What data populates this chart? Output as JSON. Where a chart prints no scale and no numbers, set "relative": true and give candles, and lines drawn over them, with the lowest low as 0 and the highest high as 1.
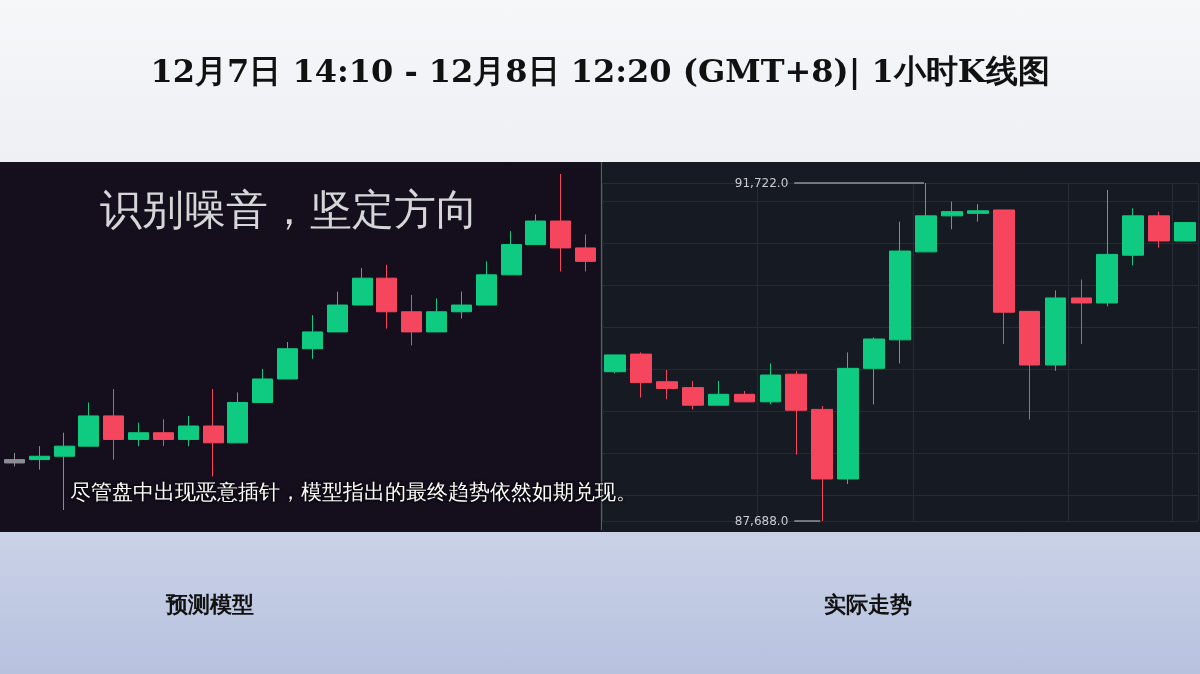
{
  "chart_data": [
    {
      "type": "candlestick",
      "title": "12月7日 14:10 - 12月8日 12:20  (GMT+8)| 1小时K线图",
      "xlabel": "预测模型",
      "relative": true,
      "tick_labels": false,
      "annotations": [
        "识别噪音，坚定方向",
        "尽管盘中出现恶意插针，模型指出的最终趋势依然如期兑现。"
      ],
      "categories": [
        null,
        null,
        null,
        null,
        null,
        null,
        null,
        null,
        null,
        null,
        null,
        null,
        null,
        null,
        null,
        null,
        null,
        null,
        null,
        null,
        null,
        null,
        null,
        null
      ],
      "ohlc": [
        [
          0.14,
          0.17,
          0.13,
          0.15
        ],
        [
          0.15,
          0.19,
          0.12,
          0.16
        ],
        [
          0.16,
          0.23,
          0,
          0.19
        ],
        [
          0.19,
          0.32,
          0.19,
          0.28
        ],
        [
          0.28,
          0.36,
          0.15,
          0.21
        ],
        [
          0.21,
          0.26,
          0.19,
          0.23
        ],
        [
          0.23,
          0.27,
          0.19,
          0.21
        ],
        [
          0.21,
          0.28,
          0.19,
          0.25
        ],
        [
          0.25,
          0.36,
          0.1,
          0.2
        ],
        [
          0.2,
          0.35,
          0.2,
          0.32
        ],
        [
          0.32,
          0.42,
          0.32,
          0.39
        ],
        [
          0.39,
          0.5,
          0.39,
          0.48
        ],
        [
          0.48,
          0.58,
          0.45,
          0.53
        ],
        [
          0.53,
          0.65,
          0.53,
          0.61
        ],
        [
          0.61,
          0.72,
          0.61,
          0.69
        ],
        [
          0.69,
          0.73,
          0.54,
          0.59
        ],
        [
          0.59,
          0.64,
          0.49,
          0.53
        ],
        [
          0.53,
          0.63,
          0.53,
          0.59
        ],
        [
          0.59,
          0.65,
          0.57,
          0.61
        ],
        [
          0.61,
          0.74,
          0.61,
          0.7
        ],
        [
          0.7,
          0.83,
          0.7,
          0.79
        ],
        [
          0.79,
          0.88,
          0.79,
          0.86
        ],
        [
          0.86,
          1,
          0.71,
          0.78
        ],
        [
          0.78,
          0.82,
          0.71,
          0.74
        ]
      ],
      "colors": [
        "#8c8c94",
        "#0ecb81",
        "#0ecb81",
        "#0ecb81",
        "#f6465d",
        "#0ecb81",
        "#f6465d",
        "#0ecb81",
        "#f6465d",
        "#0ecb81",
        "#0ecb81",
        "#0ecb81",
        "#0ecb81",
        "#0ecb81",
        "#0ecb81",
        "#f6465d",
        "#f6465d",
        "#0ecb81",
        "#0ecb81",
        "#0ecb81",
        "#0ecb81",
        "#0ecb81",
        "#f6465d",
        "#f6465d"
      ]
    },
    {
      "type": "candlestick",
      "xlabel": "实际走势",
      "tick_labels": "y",
      "grid": true,
      "ylim": [
        87688,
        91722
      ],
      "yticks": [
        {
          "value": 87688,
          "label": "87,688.0"
        },
        {
          "value": 91722,
          "label": "91,722.0"
        }
      ],
      "categories": [
        null,
        null,
        null,
        null,
        null,
        null,
        null,
        null,
        null,
        null,
        null,
        null,
        null,
        null,
        null,
        null,
        null,
        null,
        null,
        null,
        null,
        null,
        null
      ],
      "ohlc": [
        [
          89470,
          89670,
          89450,
          89670
        ],
        [
          89680,
          89700,
          89160,
          89340
        ],
        [
          89350,
          89490,
          89140,
          89270
        ],
        [
          89280,
          89360,
          89020,
          89070
        ],
        [
          89070,
          89360,
          89070,
          89200
        ],
        [
          89200,
          89240,
          89110,
          89110
        ],
        [
          89110,
          89570,
          89080,
          89430
        ],
        [
          89440,
          89480,
          88480,
          89010
        ],
        [
          89020,
          89060,
          87688,
          88190
        ],
        [
          88190,
          89700,
          88130,
          89510
        ],
        [
          89510,
          89880,
          89080,
          89860
        ],
        [
          89850,
          91260,
          89570,
          90910
        ],
        [
          90900,
          91722,
          90900,
          91330
        ],
        [
          91330,
          91500,
          91170,
          91380
        ],
        [
          91360,
          91470,
          91260,
          91390
        ],
        [
          91400,
          91400,
          89800,
          90180
        ],
        [
          90190,
          90190,
          88900,
          89550
        ],
        [
          89550,
          90440,
          89480,
          90350
        ],
        [
          90350,
          90570,
          89800,
          90290
        ],
        [
          90290,
          91640,
          90250,
          90870
        ],
        [
          90860,
          91420,
          90740,
          91330
        ],
        [
          91330,
          91380,
          90950,
          91030
        ],
        [
          91030,
          91250,
          91030,
          91250
        ]
      ],
      "colors": [
        "#0ecb81",
        "#f6465d",
        "#f6465d",
        "#f6465d",
        "#0ecb81",
        "#f6465d",
        "#0ecb81",
        "#f6465d",
        "#f6465d",
        "#0ecb81",
        "#0ecb81",
        "#0ecb81",
        "#0ecb81",
        "#0ecb81",
        "#0ecb81",
        "#f6465d",
        "#f6465d",
        "#0ecb81",
        "#f6465d",
        "#0ecb81",
        "#0ecb81",
        "#f6465d",
        "#0ecb81"
      ]
    }
  ]
}
